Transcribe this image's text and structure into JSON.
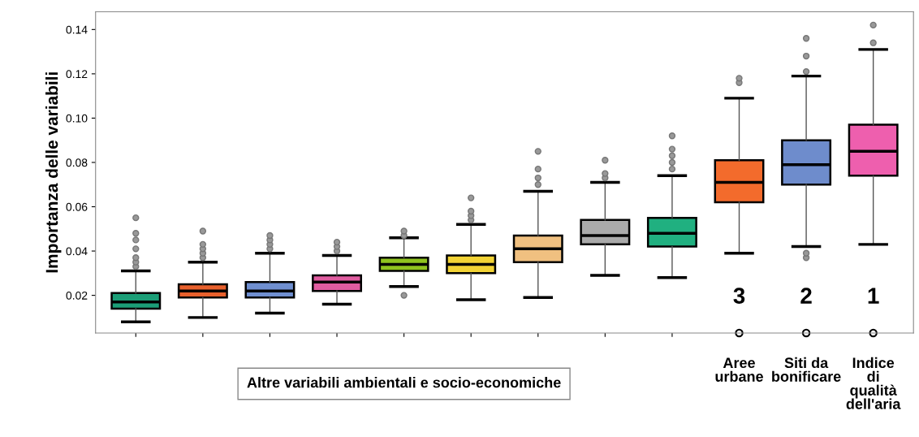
{
  "chart_data": {
    "type": "box",
    "ylabel": "Importanza delle variabili",
    "categories": [
      null,
      null,
      null,
      null,
      null,
      null,
      null,
      null,
      null,
      "Aree\nurbane",
      "Siti da\nbonificare",
      "Indice\ndi\nqualità\ndell'aria"
    ],
    "colors": [
      "#1b9e77",
      "#e8602c",
      "#6f8fd0",
      "#e05ca0",
      "#8fc31f",
      "#f2d335",
      "#f0c080",
      "#aaaaaa",
      "#20b080",
      "#f36b2c",
      "#6e8ccc",
      "#ee5fae"
    ],
    "boxes": [
      {
        "low": 0.008,
        "q1": 0.014,
        "median": 0.017,
        "q3": 0.021,
        "high": 0.031,
        "outliers": [
          0.033,
          0.035,
          0.037,
          0.041,
          0.045,
          0.048,
          0.055
        ]
      },
      {
        "low": 0.01,
        "q1": 0.019,
        "median": 0.022,
        "q3": 0.025,
        "high": 0.035,
        "outliers": [
          0.037,
          0.039,
          0.041,
          0.043,
          0.049
        ]
      },
      {
        "low": 0.012,
        "q1": 0.019,
        "median": 0.022,
        "q3": 0.026,
        "high": 0.039,
        "outliers": [
          0.041,
          0.043,
          0.045,
          0.047
        ]
      },
      {
        "low": 0.016,
        "q1": 0.022,
        "median": 0.026,
        "q3": 0.029,
        "high": 0.038,
        "outliers": [
          0.04,
          0.042,
          0.044
        ]
      },
      {
        "low": 0.024,
        "q1": 0.031,
        "median": 0.034,
        "q3": 0.037,
        "high": 0.046,
        "outliers": [
          0.02,
          0.047,
          0.049
        ]
      },
      {
        "low": 0.018,
        "q1": 0.03,
        "median": 0.034,
        "q3": 0.038,
        "high": 0.052,
        "outliers": [
          0.054,
          0.056,
          0.058,
          0.064
        ]
      },
      {
        "low": 0.019,
        "q1": 0.035,
        "median": 0.041,
        "q3": 0.047,
        "high": 0.067,
        "outliers": [
          0.07,
          0.073,
          0.077,
          0.085
        ]
      },
      {
        "low": 0.029,
        "q1": 0.043,
        "median": 0.047,
        "q3": 0.054,
        "high": 0.071,
        "outliers": [
          0.073,
          0.075,
          0.081
        ]
      },
      {
        "low": 0.028,
        "q1": 0.042,
        "median": 0.048,
        "q3": 0.055,
        "high": 0.074,
        "outliers": [
          0.077,
          0.08,
          0.083,
          0.086,
          0.092
        ]
      },
      {
        "low": 0.039,
        "q1": 0.062,
        "median": 0.071,
        "q3": 0.081,
        "high": 0.109,
        "outliers": [
          0.116,
          0.118
        ]
      },
      {
        "low": 0.042,
        "q1": 0.07,
        "median": 0.079,
        "q3": 0.09,
        "high": 0.119,
        "outliers": [
          0.037,
          0.039,
          0.121,
          0.128,
          0.136
        ]
      },
      {
        "low": 0.043,
        "q1": 0.074,
        "median": 0.085,
        "q3": 0.097,
        "high": 0.131,
        "outliers": [
          0.134,
          0.142
        ]
      }
    ],
    "ylim": [
      0.003,
      0.148
    ],
    "yticks": [
      0.02,
      0.04,
      0.06,
      0.08,
      {
        "value": 0.1,
        "label": "0.10"
      },
      0.12,
      0.14
    ],
    "annotations": [
      "3",
      "2",
      "1",
      "Altre variabili ambientali e socio-economiche"
    ],
    "grid": false
  }
}
